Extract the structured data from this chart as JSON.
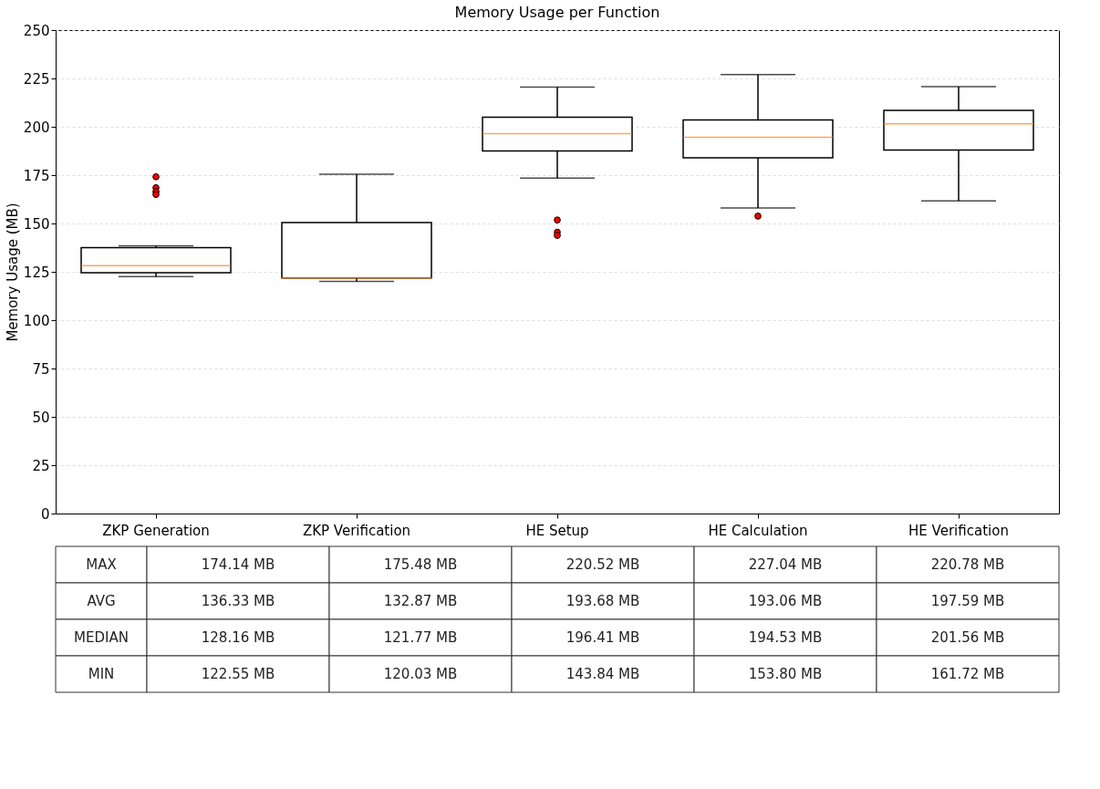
{
  "chart_data": {
    "type": "box",
    "title": "Memory Usage per Function",
    "ylabel": "Memory Usage (MB)",
    "categories": [
      "ZKP Generation",
      "ZKP Verification",
      "HE Setup",
      "HE Calculation",
      "HE Verification"
    ],
    "ylim": [
      0,
      250
    ],
    "yticks": [
      0,
      25,
      50,
      75,
      100,
      125,
      150,
      175,
      200,
      225,
      250
    ],
    "grid": "y",
    "boxes": [
      {
        "low": 122.55,
        "q1": 124.5,
        "median": 128.16,
        "q3": 137.5,
        "high": 138.5,
        "outliers": [
          174.14,
          168.5,
          166.5,
          165.0
        ]
      },
      {
        "low": 120.03,
        "q1": 121.77,
        "median": 121.77,
        "q3": 150.5,
        "high": 175.48
      },
      {
        "low": 173.5,
        "q1": 187.5,
        "median": 196.41,
        "q3": 205.0,
        "high": 220.52,
        "outliers": [
          151.8,
          145.5,
          143.84
        ]
      },
      {
        "low": 158.0,
        "q1": 184.0,
        "median": 194.53,
        "q3": 203.5,
        "high": 227.04,
        "outliers": [
          153.8
        ]
      },
      {
        "low": 161.72,
        "q1": 188.0,
        "median": 201.56,
        "q3": 208.5,
        "high": 220.78
      }
    ],
    "annotations": [
      "MAX",
      "174.14 MB",
      "175.48 MB",
      "220.52 MB",
      "227.04 MB",
      "220.78 MB",
      "AVG",
      "136.33 MB",
      "132.87 MB",
      "193.68 MB",
      "193.06 MB",
      "197.59 MB",
      "MEDIAN",
      "128.16 MB",
      "121.77 MB",
      "196.41 MB",
      "194.53 MB",
      "201.56 MB",
      "MIN",
      "122.55 MB",
      "120.03 MB",
      "143.84 MB",
      "153.80 MB",
      "161.72 MB"
    ]
  }
}
